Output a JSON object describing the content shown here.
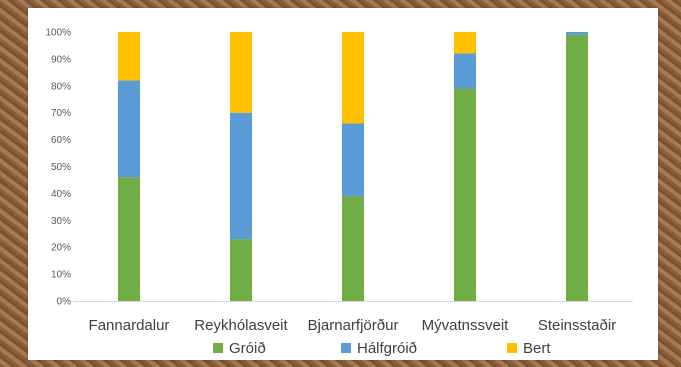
{
  "chart_data": {
    "type": "bar",
    "stacked": true,
    "categories": [
      "Fannardalur",
      "Reykhólasveit",
      "Bjarnarfjörður",
      "Mývatnssveit",
      "Steinsstaðir"
    ],
    "series": [
      {
        "name": "Gróið",
        "values": [
          46,
          23,
          39,
          79,
          99
        ],
        "color": "#70ad47"
      },
      {
        "name": "Hálfgróið",
        "values": [
          36,
          47,
          27,
          13,
          1
        ],
        "color": "#5b9bd5"
      },
      {
        "name": "Bert",
        "values": [
          18,
          30,
          34,
          8,
          0
        ],
        "color": "#ffc000"
      }
    ],
    "ylim": [
      0,
      100
    ],
    "y_ticks": [
      "0%",
      "10%",
      "20%",
      "30%",
      "40%",
      "50%",
      "60%",
      "70%",
      "80%",
      "90%",
      "100%"
    ],
    "grid": false,
    "legend": "bottom"
  }
}
